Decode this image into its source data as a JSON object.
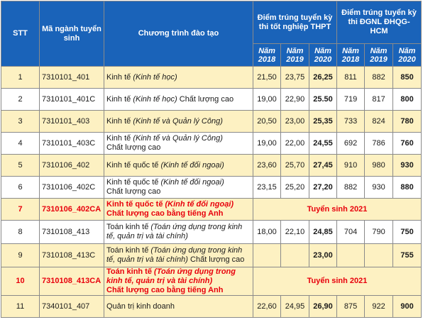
{
  "header": {
    "stt": "STT",
    "code": "Mã ngành tuyển sinh",
    "program": "Chương trình đào tạo",
    "thpt_group": "Điểm trúng tuyển kỳ thi tốt nghiệp THPT",
    "dgnl_group": "Điểm trúng tuyển kỳ thi ĐGNL ĐHQG-HCM",
    "years": [
      "Năm 2018",
      "Năm 2019",
      "Năm 2020",
      "Năm 2018",
      "Năm 2019",
      "Năm 2020"
    ]
  },
  "rows": [
    {
      "stt": "1",
      "code": "7310101_401",
      "name": "Kinh tế ",
      "name_it": "(Kinh tế học)",
      "name_tail": "",
      "thpt": [
        "21,50",
        "23,75",
        "26,25"
      ],
      "dgnl": [
        "811",
        "882",
        "850"
      ]
    },
    {
      "stt": "2",
      "code": "7310101_401C",
      "name": "Kinh tế ",
      "name_it": "(Kinh tế học)",
      "name_tail": " Chất lượng cao",
      "thpt": [
        "19,00",
        "22,90",
        "25.50"
      ],
      "dgnl": [
        "719",
        "817",
        "800"
      ]
    },
    {
      "stt": "3",
      "code": "7310101_403",
      "name": "Kinh tế ",
      "name_it": "(Kinh tế và Quản lý Công)",
      "name_tail": "",
      "thpt": [
        "20,50",
        "23,00",
        "25,35"
      ],
      "dgnl": [
        "733",
        "824",
        "780"
      ]
    },
    {
      "stt": "4",
      "code": "7310101_403C",
      "name": "Kinh tế ",
      "name_it": "(Kinh tế và Quản lý Công)",
      "name_tail": "Chất lượng cao",
      "thpt": [
        "19,00",
        "22,00",
        "24,55"
      ],
      "dgnl": [
        "692",
        "786",
        "760"
      ]
    },
    {
      "stt": "5",
      "code": "7310106_402",
      "name": "Kinh tế quốc tế ",
      "name_it": "(Kinh tế đối ngoại)",
      "name_tail": "",
      "thpt": [
        "23,60",
        "25,70",
        "27,45"
      ],
      "dgnl": [
        "910",
        "980",
        "930"
      ]
    },
    {
      "stt": "6",
      "code": "7310106_402C",
      "name": "Kinh tế quốc tế ",
      "name_it": "(Kinh tế đối ngoại)",
      "name_tail": "Chất lượng cao",
      "thpt": [
        "23,15",
        "25,20",
        "27,20"
      ],
      "dgnl": [
        "882",
        "930",
        "880"
      ]
    },
    {
      "stt": "7",
      "code": "7310106_402CA",
      "name": "Kinh tế quốc tế ",
      "name_it": "(Kinh tế đối ngoại)",
      "name_tail": "Chất lượng cao bằng tiếng Anh",
      "notice": "Tuyển sinh 2021"
    },
    {
      "stt": "8",
      "code": "7310108_413",
      "name": "Toán kinh tế ",
      "name_it": "(Toán ứng dụng trong kinh tế, quản trị và tài chính)",
      "name_tail": "",
      "thpt": [
        "18,00",
        "22,10",
        "24,85"
      ],
      "dgnl": [
        "704",
        "790",
        "750"
      ]
    },
    {
      "stt": "9",
      "code": "7310108_413C",
      "name": "Toán kinh tế ",
      "name_it": "(Toán ứng dụng trong kinh tế, quản trị và tài chính)",
      "name_tail": " Chất lượng cao",
      "thpt": [
        "",
        "",
        "23,00"
      ],
      "dgnl": [
        "",
        "",
        "755"
      ]
    },
    {
      "stt": "10",
      "code": "7310108_413CA",
      "name": "Toán kinh tế ",
      "name_it": "(Toán ứng dụng trong kinh tế, quản trị và tài chính)",
      "name_tail": "Chất lượng cao bằng tiếng Anh",
      "notice": "Tuyển sinh 2021"
    },
    {
      "stt": "11",
      "code": "7340101_407",
      "name": "Quản trị kinh doanh",
      "name_it": "",
      "name_tail": "",
      "thpt": [
        "22,60",
        "24,95",
        "26,90"
      ],
      "dgnl": [
        "875",
        "922",
        "900"
      ]
    }
  ]
}
